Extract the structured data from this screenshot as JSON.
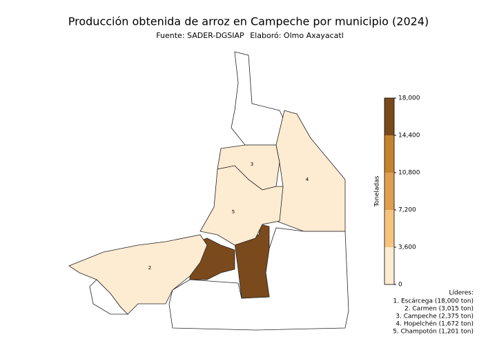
{
  "title": "Producción obtenida de arroz en Campeche por municipio (2024)",
  "source": "Fuente: SADER-DGSIAP",
  "author": "Elaboró: Olmo Axayacatl",
  "map_labels": [
    "2",
    "3",
    "4",
    "5"
  ],
  "colorbar": {
    "label": "Toneladas",
    "lim": [
      0,
      18000
    ],
    "ticks": [
      0,
      {
        "value": 3600,
        "label": "3,600"
      },
      {
        "value": 7200,
        "label": "7,200"
      },
      {
        "value": 10800,
        "label": "10,800"
      },
      {
        "value": 14400,
        "label": "14,400"
      },
      {
        "value": 18000,
        "label": "18,000"
      }
    ],
    "colors": [
      "#fdebd2",
      "#f6c37e",
      "#df9f4f",
      "#c4842e",
      "#7b4a1c"
    ]
  },
  "leaders": {
    "title": "Líderes:",
    "items": [
      {
        "text": "1. Escárcega (18,000 ton)",
        "value": 18000
      },
      {
        "text": "2. Carmen (3,015 ton)",
        "value": 3015
      },
      {
        "text": "3. Campeche (2,375 ton)",
        "value": 2375
      },
      {
        "text": "4. Hopelchén (1,672 ton)",
        "value": 1672
      },
      {
        "text": "5. Champotón (1,201 ton)",
        "value": 1201
      }
    ]
  }
}
